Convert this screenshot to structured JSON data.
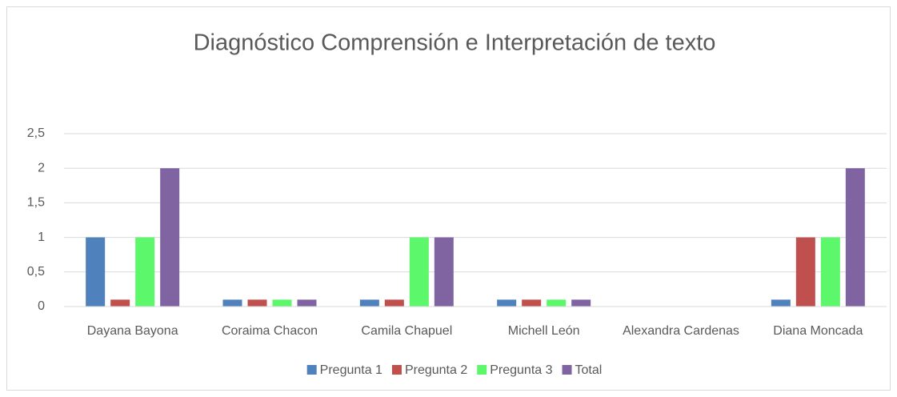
{
  "chart_data": {
    "type": "bar",
    "title": "Diagnóstico  Comprensión e Interpretación de texto",
    "categories": [
      "Dayana Bayona",
      "Coraima Chacon",
      "Camila Chapuel",
      "Michell León",
      "Alexandra Cardenas",
      "Diana Moncada"
    ],
    "series": [
      {
        "name": "Pregunta 1",
        "color": "#4f81bd",
        "values": [
          1,
          0.1,
          0.1,
          0.1,
          0,
          0.1
        ]
      },
      {
        "name": "Pregunta 2",
        "color": "#c0504d",
        "values": [
          0.1,
          0.1,
          0.1,
          0.1,
          0,
          1
        ]
      },
      {
        "name": "Pregunta 3",
        "color": "#5cf76a",
        "values": [
          1,
          0.1,
          1,
          0.1,
          0,
          1
        ]
      },
      {
        "name": "Total",
        "color": "#8064a2",
        "values": [
          2,
          0.1,
          1,
          0.1,
          0,
          2
        ]
      }
    ],
    "ylim": [
      0,
      2.5
    ],
    "yticks": [
      0,
      {
        "value": 0.5,
        "label": "0,5"
      },
      1,
      {
        "value": 1.5,
        "label": "1,5"
      },
      2,
      {
        "value": 2.5,
        "label": "2,5"
      }
    ],
    "grid": true,
    "legend": "bottom"
  }
}
